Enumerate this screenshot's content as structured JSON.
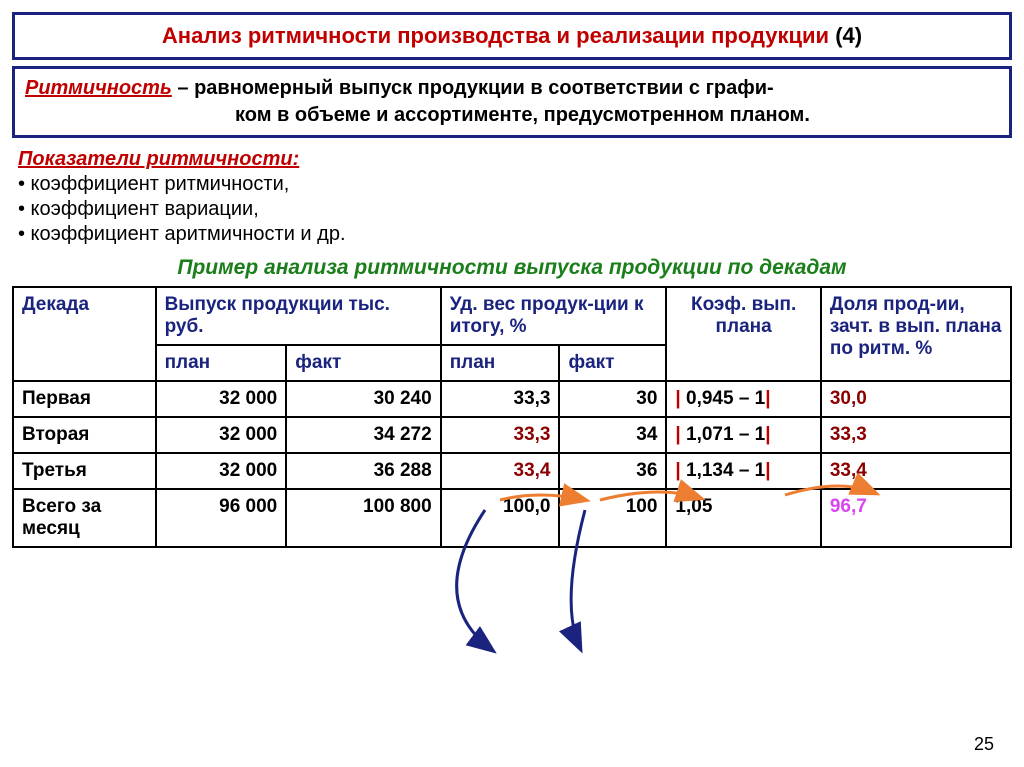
{
  "title": {
    "red": "Анализ ритмичности производства и реализации продукции",
    "suffix": "  (4)"
  },
  "definition": {
    "term": "Ритмичность",
    "line1": " – равномерный выпуск продукции в соответствии с графи-",
    "line2": "ком в объеме и ассортименте, предусмотренном планом."
  },
  "indicators": {
    "title": "Показатели ритмичности:",
    "items": [
      "• коэффициент ритмичности,",
      "• коэффициент вариации,",
      "• коэффициент аритмичности и др."
    ]
  },
  "example_title": "Пример анализа ритмичности выпуска продукции по декадам",
  "table": {
    "headers": {
      "decade": "Декада",
      "output": "Выпуск продукции тыс. руб.",
      "weight": "Уд. вес продук-ции к итогу, %",
      "coef": "Коэф. вып. плана",
      "share": "Доля прод-ии, зачт. в вып. плана по ритм. %",
      "plan": "план",
      "fact": "факт"
    },
    "rows": [
      {
        "decade": "Первая",
        "out_plan": "32 000",
        "out_fact": "30 240",
        "w_plan": "33,3",
        "w_fact": "30",
        "coef_pre": "| ",
        "coef": "0,945 – 1",
        "coef_post": "|",
        "share": "30,0",
        "w_plan_red": false,
        "share_mag": false
      },
      {
        "decade": "Вторая",
        "out_plan": "32 000",
        "out_fact": "34 272",
        "w_plan": "33,3",
        "w_fact": "34",
        "coef_pre": "| ",
        "coef": "1,071 – 1",
        "coef_post": "|",
        "share": "33,3",
        "w_plan_red": true,
        "share_mag": false
      },
      {
        "decade": "Третья",
        "out_plan": "32 000",
        "out_fact": "36 288",
        "w_plan": "33,4",
        "w_fact": "36",
        "coef_pre": "| ",
        "coef": "1,134 – 1",
        "coef_post": "|",
        "share": "33,4",
        "w_plan_red": true,
        "share_mag": false
      },
      {
        "decade": "Всего за месяц",
        "out_plan": "96 000",
        "out_fact": "100 800",
        "w_plan": "100,0",
        "w_fact": "100",
        "coef_pre": "",
        "coef": "1,05",
        "coef_post": "",
        "share": "96,7",
        "w_plan_red": false,
        "share_mag": true
      }
    ]
  },
  "arrows": {
    "orange": "#ed7d31",
    "blue": "#1a237e"
  },
  "page_num": "25"
}
